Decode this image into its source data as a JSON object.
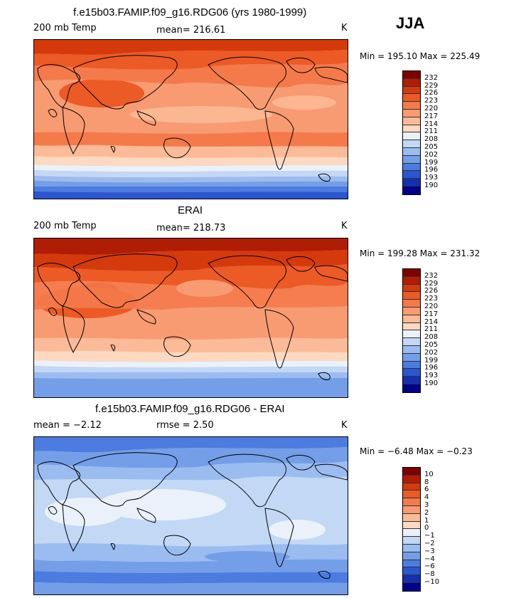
{
  "season": "JJA",
  "panels": [
    {
      "title": "f.e15b03.FAMIP.f09_g16.RDG06 (yrs 1980-1999)",
      "left_label": "200 mb Temp",
      "mid_label": "mean= 216.61",
      "units": "K",
      "minmax": "Min = 195.10 Max = 225.49"
    },
    {
      "title": "ERAI",
      "left_label": "200 mb Temp",
      "mid_label": "mean= 218.73",
      "units": "K",
      "minmax": "Min = 199.28 Max = 231.32"
    },
    {
      "title": "f.e15b03.FAMIP.f09_g16.RDG06 - ERAI",
      "left_label": "mean =  −2.12",
      "mid_label": "rmse =    2.50",
      "units": "K",
      "minmax": "Min =  −6.48 Max =  −0.23"
    }
  ],
  "colorbar_temp": {
    "colors": [
      "#7f0000",
      "#b01d05",
      "#d43a0b",
      "#ec5a26",
      "#f47a4b",
      "#f89b72",
      "#fbbb98",
      "#fdd9c1",
      "#eaf1fb",
      "#c2d8f5",
      "#9bbcf0",
      "#749ee8",
      "#4c7ce0",
      "#2c56cf",
      "#1430b0",
      "#00008b"
    ],
    "labels": [
      "232",
      "229",
      "226",
      "223",
      "220",
      "217",
      "214",
      "211",
      "208",
      "205",
      "202",
      "199",
      "196",
      "193",
      "190"
    ]
  },
  "colorbar_diff": {
    "colors": [
      "#7f0000",
      "#b01d05",
      "#d43a0b",
      "#ec5a26",
      "#f47a4b",
      "#f89b72",
      "#fbbb98",
      "#fdd9c1",
      "#eaf1fb",
      "#c2d8f5",
      "#9bbcf0",
      "#749ee8",
      "#4c7ce0",
      "#2c56cf",
      "#1430b0",
      "#00008b"
    ],
    "labels": [
      "10",
      "8",
      "6",
      "4",
      "3",
      "2",
      "1",
      "0",
      "−1",
      "−2",
      "−3",
      "−4",
      "−6",
      "−8",
      "−10"
    ]
  },
  "chart_data": [
    {
      "type": "heatmap",
      "title": "f.e15b03.FAMIP.f09_g16.RDG06 (yrs 1980-1999)",
      "variable": "200 mb Temp",
      "units": "K",
      "mean": 216.61,
      "min": 195.1,
      "max": 225.49,
      "contour_levels": [
        190,
        193,
        196,
        199,
        202,
        205,
        208,
        211,
        214,
        217,
        220,
        223,
        226,
        229,
        232
      ]
    },
    {
      "type": "heatmap",
      "title": "ERAI",
      "variable": "200 mb Temp",
      "units": "K",
      "mean": 218.73,
      "min": 199.28,
      "max": 231.32,
      "contour_levels": [
        190,
        193,
        196,
        199,
        202,
        205,
        208,
        211,
        214,
        217,
        220,
        223,
        226,
        229,
        232
      ]
    },
    {
      "type": "heatmap",
      "title": "f.e15b03.FAMIP.f09_g16.RDG06 - ERAI",
      "units": "K",
      "mean": -2.12,
      "rmse": 2.5,
      "min": -6.48,
      "max": -0.23,
      "contour_levels": [
        -10,
        -8,
        -6,
        -4,
        -3,
        -2,
        -1,
        0,
        1,
        2,
        3,
        4,
        6,
        8,
        10
      ]
    }
  ]
}
